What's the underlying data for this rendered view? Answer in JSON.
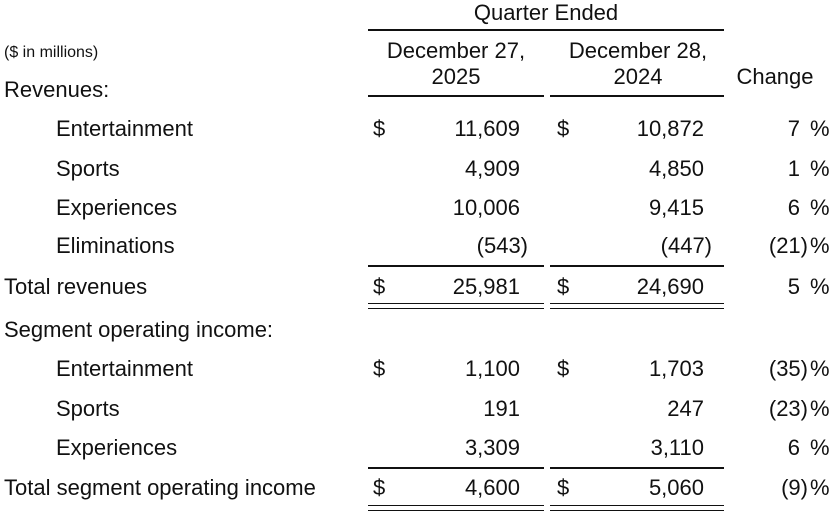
{
  "header": {
    "group": "Quarter Ended",
    "units": "($ in millions)",
    "col1": [
      "December 27,",
      "2025"
    ],
    "col2": [
      "December 28,",
      "2024"
    ],
    "change": "Change"
  },
  "sections": {
    "revenues": "Revenues:",
    "segment": "Segment operating income:"
  },
  "dollar": "$",
  "pct": "%",
  "rows": [
    {
      "label": "Entertainment",
      "v1": "11,609",
      "v2": "10,872",
      "chg": "7"
    },
    {
      "label": "Sports",
      "v1": "4,909",
      "v2": "4,850",
      "chg": "1"
    },
    {
      "label": "Experiences",
      "v1": "10,006",
      "v2": "9,415",
      "chg": "6"
    },
    {
      "label": "Eliminations",
      "v1": "(543)",
      "v2": "(447)",
      "chg": "(21)"
    },
    {
      "label": "Total revenues",
      "v1": "25,981",
      "v2": "24,690",
      "chg": "5"
    },
    {
      "label": "Entertainment",
      "v1": "1,100",
      "v2": "1,703",
      "chg": "(35)"
    },
    {
      "label": "Sports",
      "v1": "191",
      "v2": "247",
      "chg": "(23)"
    },
    {
      "label": "Experiences",
      "v1": "3,309",
      "v2": "3,110",
      "chg": "6"
    },
    {
      "label": "Total segment operating income",
      "v1": "4,600",
      "v2": "5,060",
      "chg": "(9)"
    }
  ]
}
